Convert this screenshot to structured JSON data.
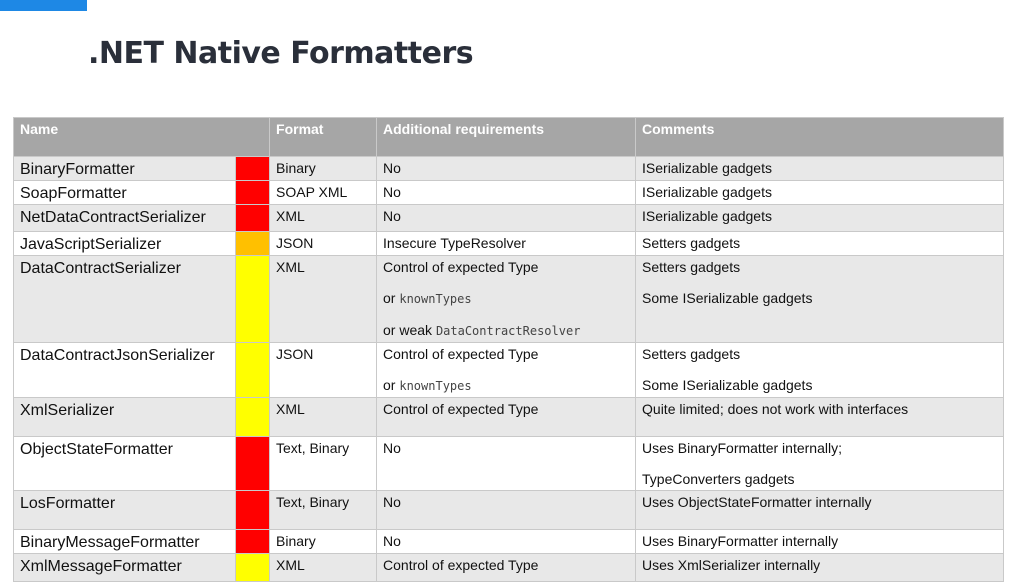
{
  "slide": {
    "title": ".NET Native Formatters"
  },
  "table": {
    "headers": [
      "Name",
      "Format",
      "Additional requirements",
      "Comments"
    ],
    "rows": [
      {
        "name": "BinaryFormatter",
        "risk": "red",
        "format": "Binary",
        "requirements": [
          {
            "text": "No"
          }
        ],
        "comments": [
          {
            "text": "ISerializable gadgets"
          }
        ]
      },
      {
        "name": "SoapFormatter",
        "risk": "red",
        "format": "SOAP XML",
        "requirements": [
          {
            "text": "No"
          }
        ],
        "comments": [
          {
            "text": "ISerializable gadgets"
          }
        ]
      },
      {
        "name": "NetDataContractSerializer",
        "risk": "red",
        "format": "XML",
        "requirements": [
          {
            "text": "No"
          }
        ],
        "comments": [
          {
            "text": "ISerializable gadgets"
          }
        ]
      },
      {
        "name": "JavaScriptSerializer",
        "risk": "orange",
        "format": "JSON",
        "requirements": [
          {
            "text": "Insecure TypeResolver"
          }
        ],
        "comments": [
          {
            "text": "Setters gadgets"
          }
        ]
      },
      {
        "name": "DataContractSerializer",
        "risk": "yellow",
        "format": "XML",
        "requirements": [
          {
            "text": "Control of expected Type"
          },
          {
            "text": "or ",
            "code": "knownTypes"
          },
          {
            "text": "or weak ",
            "code": "DataContractResolver"
          }
        ],
        "comments": [
          {
            "text": "Setters gadgets"
          },
          {
            "text": "Some ISerializable gadgets"
          }
        ]
      },
      {
        "name": "DataContractJsonSerializer",
        "risk": "yellow",
        "format": "JSON",
        "requirements": [
          {
            "text": "Control of expected Type"
          },
          {
            "text": "or ",
            "code": "knownTypes"
          }
        ],
        "comments": [
          {
            "text": "Setters gadgets"
          },
          {
            "text": "Some ISerializable gadgets"
          }
        ]
      },
      {
        "name": "XmlSerializer",
        "risk": "yellow",
        "format": "XML",
        "requirements": [
          {
            "text": "Control of expected Type"
          }
        ],
        "comments": [
          {
            "text": "Quite limited; does not work with interfaces"
          }
        ]
      },
      {
        "name": "ObjectStateFormatter",
        "risk": "red",
        "format": "Text, Binary",
        "requirements": [
          {
            "text": "No"
          }
        ],
        "comments": [
          {
            "text": "Uses BinaryFormatter internally;"
          },
          {
            "text": "TypeConverters gadgets"
          }
        ]
      },
      {
        "name": "LosFormatter",
        "risk": "red",
        "format": "Text, Binary",
        "requirements": [
          {
            "text": "No"
          }
        ],
        "comments": [
          {
            "text": "Uses ObjectStateFormatter internally"
          }
        ]
      },
      {
        "name": "BinaryMessageFormatter",
        "risk": "red",
        "format": "Binary",
        "requirements": [
          {
            "text": "No"
          }
        ],
        "comments": [
          {
            "text": "Uses BinaryFormatter internally"
          }
        ]
      },
      {
        "name": "XmlMessageFormatter",
        "risk": "yellow",
        "format": "XML",
        "requirements": [
          {
            "text": "Control of expected Type"
          }
        ],
        "comments": [
          {
            "text": "Uses XmlSerializer internally"
          }
        ]
      }
    ]
  },
  "colors": {
    "accent": "#1e88e5",
    "header_bg": "#a6a6a6",
    "risk_red": "#ff0000",
    "risk_orange": "#ffc000",
    "risk_yellow": "#ffff00"
  }
}
